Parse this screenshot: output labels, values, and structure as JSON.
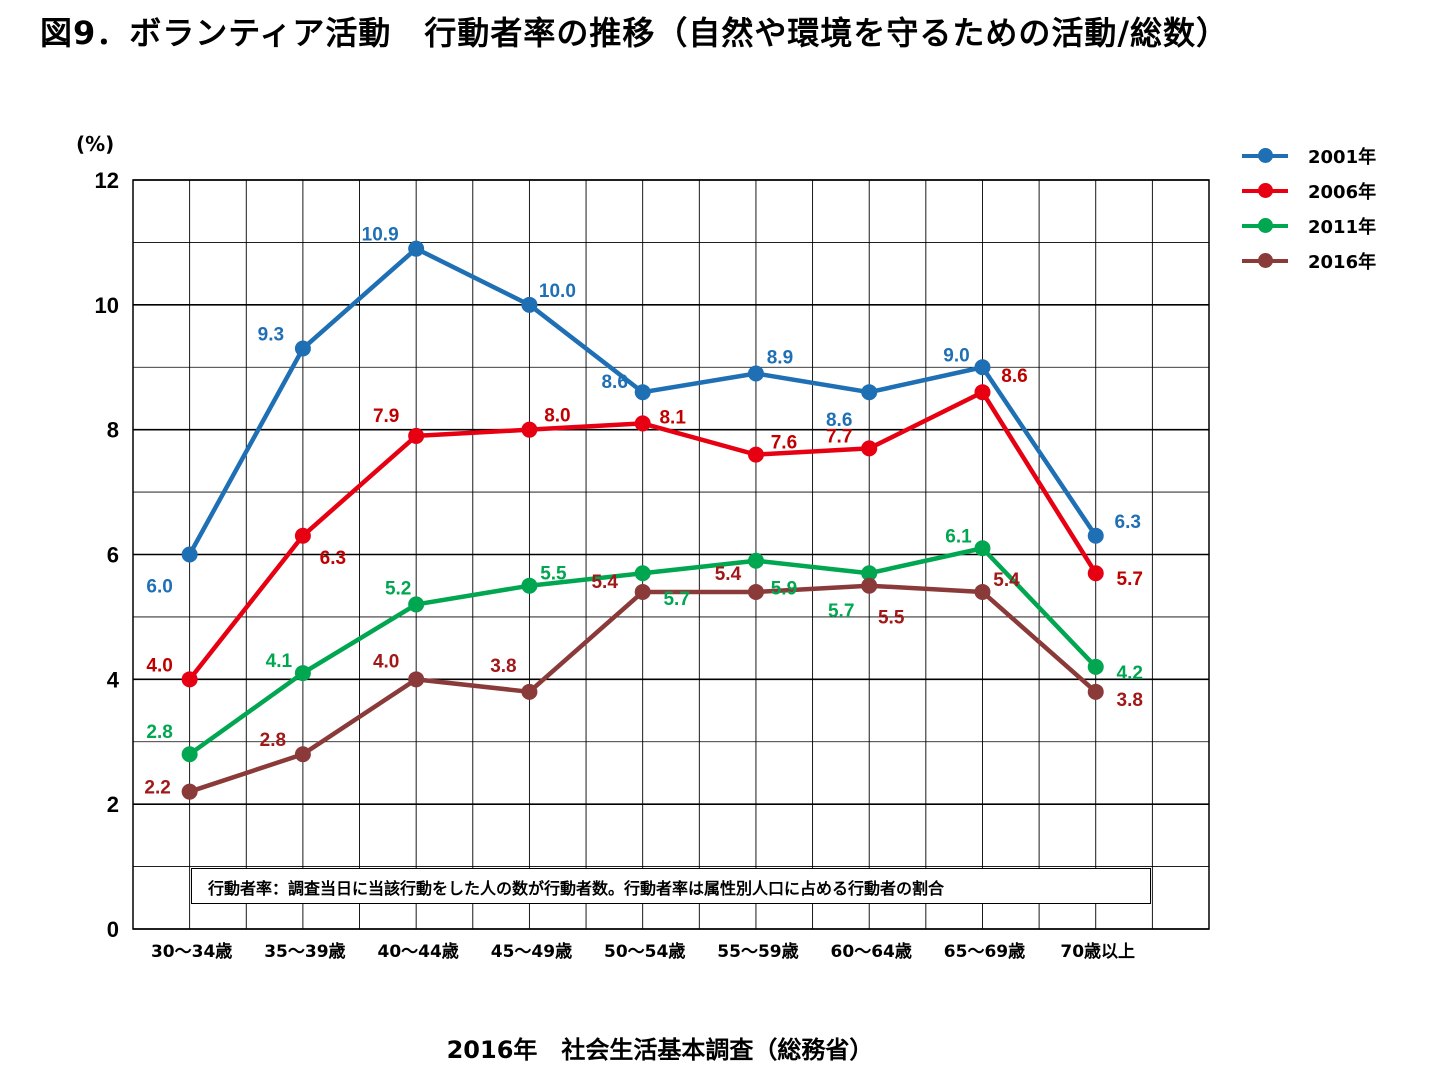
{
  "title": "図9．ボランティア活動　行動者率の推移（自然や環境を守るための活動/総数）",
  "source": "2016年　社会生活基本調査（総務省）",
  "note": "行動者率：調査当日に当該行動をした人の数が行動者数。行動者率は属性別人口に占める行動者の割合",
  "chart_data": {
    "type": "line",
    "title": "図9．ボランティア活動　行動者率の推移（自然や環境を守るための活動/総数）",
    "ylabel": "(%)",
    "xlabel": "",
    "ylim": [
      0,
      12
    ],
    "yticks": [
      "0",
      "2",
      "4",
      "6",
      "8",
      "10",
      "12"
    ],
    "grid": true,
    "legend_position": "top-right",
    "categories": [
      "30～34歳",
      "35～39歳",
      "40～44歳",
      "45～49歳",
      "50～54歳",
      "55～59歳",
      "60～64歳",
      "65～69歳",
      "70歳以上"
    ],
    "series": [
      {
        "name": "2001年",
        "color": "#1f6fb5",
        "values": [
          6.0,
          9.3,
          10.9,
          10.0,
          8.6,
          8.9,
          8.6,
          9.0,
          6.3
        ]
      },
      {
        "name": "2006年",
        "color": "#e60012",
        "values": [
          4.0,
          6.3,
          7.9,
          8.0,
          8.1,
          7.6,
          7.7,
          8.6,
          5.7
        ]
      },
      {
        "name": "2011年",
        "color": "#00a650",
        "values": [
          2.8,
          4.1,
          5.2,
          5.5,
          5.7,
          5.9,
          5.7,
          6.1,
          4.2
        ]
      },
      {
        "name": "2016年",
        "color": "#8b3a3a",
        "values": [
          2.2,
          2.8,
          4.0,
          3.8,
          5.4,
          5.4,
          5.5,
          5.4,
          3.8
        ]
      }
    ],
    "data_labels": {
      "2001年": [
        "6.0",
        "9.3",
        "10.9",
        "10.0",
        "8.6",
        "8.9",
        "8.6",
        "9.0",
        "6.3"
      ],
      "2006年": [
        "4.0",
        "6.3",
        "7.9",
        "8.0",
        "8.1",
        "7.6",
        "7.7",
        "8.6",
        "5.7"
      ],
      "2011年": [
        "2.8",
        "4.1",
        "5.2",
        "5.5",
        "5.7",
        "5.9",
        "5.7",
        "6.1",
        "4.2"
      ],
      "2016年": [
        "2.2",
        "2.8",
        "4.0",
        "3.8",
        "5.4",
        "5.4",
        "5.5",
        "5.4",
        "3.8"
      ]
    },
    "label_colors": {
      "2001年": "#1f6fb5",
      "2006年": "#c00000",
      "2011年": "#00a650",
      "2016年": "#a01818"
    }
  }
}
